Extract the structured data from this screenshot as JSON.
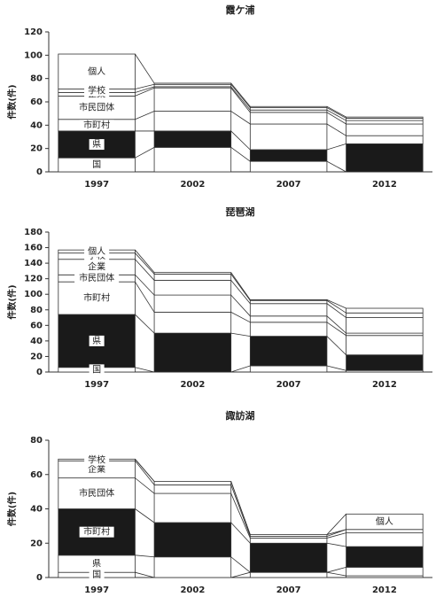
{
  "chart_data": [
    {
      "type": "stacked-bar",
      "title": "霞ケ浦",
      "y_label": "件数(件)",
      "categories": [
        "1997",
        "2002",
        "2007",
        "2012"
      ],
      "ylim": [
        0,
        120
      ],
      "yticks": [
        0,
        20,
        40,
        60,
        80,
        100,
        120
      ],
      "series": [
        {
          "name": "国",
          "color": "#ffffff",
          "values": [
            12,
            21,
            9,
            0
          ]
        },
        {
          "name": "県",
          "color": "#1a1a1a",
          "values": [
            23,
            14,
            10,
            24
          ]
        },
        {
          "name": "市町村",
          "color": "#ffffff",
          "values": [
            10,
            17,
            22,
            7
          ]
        },
        {
          "name": "市民団体",
          "color": "#ffffff",
          "values": [
            20,
            20,
            10,
            10
          ]
        },
        {
          "name": "企業",
          "color": "#ffffff",
          "values": [
            3,
            1,
            2,
            3
          ]
        },
        {
          "name": "学校",
          "color": "#ffffff",
          "values": [
            3,
            2,
            2,
            2
          ]
        },
        {
          "name": "個人",
          "color": "#ffffff",
          "values": [
            30,
            1,
            1,
            1
          ]
        }
      ]
    },
    {
      "type": "stacked-bar",
      "title": "琵琶湖",
      "y_label": "件数(件)",
      "categories": [
        "1997",
        "2002",
        "2007",
        "2012"
      ],
      "ylim": [
        0,
        180
      ],
      "yticks": [
        0,
        20,
        40,
        60,
        80,
        100,
        120,
        140,
        160,
        180
      ],
      "series": [
        {
          "name": "国",
          "color": "#ffffff",
          "values": [
            6,
            0,
            8,
            2
          ]
        },
        {
          "name": "県",
          "color": "#1a1a1a",
          "values": [
            68,
            50,
            38,
            20
          ]
        },
        {
          "name": "市町村",
          "color": "#ffffff",
          "values": [
            42,
            27,
            18,
            25
          ]
        },
        {
          "name": "市民団体",
          "color": "#ffffff",
          "values": [
            9,
            22,
            8,
            3
          ]
        },
        {
          "name": "企業",
          "color": "#ffffff",
          "values": [
            20,
            19,
            16,
            20
          ]
        },
        {
          "name": "学校",
          "color": "#ffffff",
          "values": [
            8,
            8,
            4,
            6
          ]
        },
        {
          "name": "個人",
          "color": "#ffffff",
          "values": [
            4,
            2,
            1,
            6
          ]
        }
      ]
    },
    {
      "type": "stacked-bar",
      "title": "諏訪湖",
      "y_label": "件数(件)",
      "categories": [
        "1997",
        "2002",
        "2007",
        "2012"
      ],
      "ylim": [
        0,
        80
      ],
      "yticks": [
        0,
        20,
        40,
        60,
        80
      ],
      "series": [
        {
          "name": "国",
          "color": "#ffffff",
          "values": [
            3,
            0,
            3,
            1
          ]
        },
        {
          "name": "県",
          "color": "#ffffff",
          "values": [
            10,
            12,
            0,
            5
          ]
        },
        {
          "name": "市町村",
          "color": "#1a1a1a",
          "values": [
            27,
            20,
            17,
            12
          ]
        },
        {
          "name": "市民団体",
          "color": "#ffffff",
          "values": [
            18,
            17,
            3,
            8
          ]
        },
        {
          "name": "企業",
          "color": "#ffffff",
          "values": [
            10,
            5,
            1,
            2
          ]
        },
        {
          "name": "学校",
          "color": "#ffffff",
          "values": [
            1,
            2,
            1,
            0
          ]
        },
        {
          "name": "個人",
          "color": "#ffffff",
          "values": [
            0,
            0,
            0,
            9
          ]
        }
      ]
    }
  ]
}
